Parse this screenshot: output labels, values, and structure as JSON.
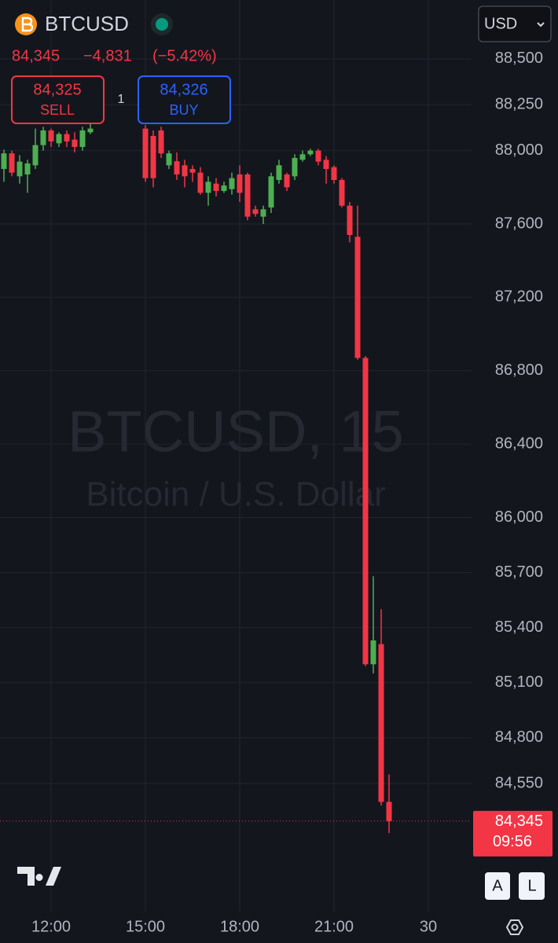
{
  "header": {
    "symbol": "BTCUSD",
    "last": "84,345",
    "change": "−4,831",
    "change_pct": "(−5.42%)",
    "sell_price": "84,325",
    "sell": "SELL",
    "spread": "1",
    "buy_price": "84,326",
    "buy": "BUY",
    "currency": "USD",
    "auto": "A",
    "log": "L"
  },
  "chart_data": {
    "type": "candlestick",
    "watermark": "BTCUSD, 15",
    "watermark_sub": "Bitcoin / U.S. Dollar",
    "last_label": "84,345",
    "countdown": "09:56",
    "up_color": "#4caf50",
    "down_color": "#f23645",
    "x": [
      10.5,
      10.75,
      11,
      11.25,
      11.5,
      11.75,
      12,
      12.25,
      12.5,
      12.75,
      13,
      13.25,
      15,
      15.25,
      15.5,
      15.75,
      16,
      16.25,
      16.5,
      16.75,
      17,
      17.25,
      17.5,
      17.75,
      18,
      18.25,
      18.5,
      18.75,
      19,
      19.25,
      19.5,
      19.75,
      20,
      20.25,
      20.5,
      20.75,
      21,
      21.25,
      21.5,
      21.75,
      22,
      22.25,
      22.5,
      22.75
    ],
    "open": [
      87900,
      87985,
      87860,
      87870,
      87920,
      88030,
      88110,
      88040,
      88090,
      88060,
      88020,
      88100,
      88120,
      88080,
      88110,
      87920,
      87942,
      87920,
      87900,
      87880,
      87770,
      87820,
      87780,
      87790,
      87870,
      87870,
      87680,
      87640,
      87690,
      87840,
      87870,
      87860,
      87950,
      87980,
      88000,
      87950,
      87910,
      87840,
      87700,
      87530,
      86870,
      85200,
      85310,
      84450
    ],
    "high": [
      88005,
      88000,
      87975,
      87950,
      88120,
      88130,
      88120,
      88100,
      88110,
      88100,
      88130,
      88150,
      88140,
      88110,
      88130,
      88000,
      87990,
      87950,
      87920,
      87910,
      87860,
      87850,
      87830,
      87880,
      87920,
      87880,
      87700,
      87700,
      87880,
      87950,
      87880,
      87980,
      88000,
      88010,
      88010,
      87970,
      87920,
      87850,
      87720,
      87700,
      86880,
      85680,
      85500,
      84600
    ],
    "low": [
      87830,
      87860,
      87820,
      87770,
      87900,
      88000,
      88020,
      88020,
      88020,
      87990,
      88000,
      88090,
      87830,
      87800,
      87960,
      87900,
      87840,
      87800,
      87830,
      87760,
      87700,
      87750,
      87770,
      87760,
      87720,
      87620,
      87640,
      87600,
      87660,
      87820,
      87780,
      87840,
      87940,
      87970,
      87920,
      87820,
      87820,
      87690,
      87500,
      86860,
      85190,
      85150,
      84430,
      84280
    ],
    "close": [
      87985,
      87880,
      87940,
      87930,
      88030,
      88110,
      88050,
      88090,
      88050,
      88020,
      88110,
      88120,
      87850,
      87850,
      87985,
      87985,
      87870,
      87860,
      87880,
      87770,
      87830,
      87780,
      87810,
      87850,
      87770,
      87640,
      87655,
      87680,
      87860,
      87920,
      87800,
      87960,
      87980,
      88000,
      87940,
      87900,
      87840,
      87700,
      87540,
      86870,
      85200,
      85330,
      84450,
      84345
    ],
    "xlim": [
      10.375,
      25.375
    ],
    "xticks": [
      {
        "value": 12,
        "label": "12:00"
      },
      {
        "value": 15,
        "label": "15:00"
      },
      {
        "value": 18,
        "label": "18:00"
      },
      {
        "value": 21,
        "label": "21:00"
      },
      {
        "value": 24,
        "label": "30"
      }
    ],
    "ylim": [
      83852,
      88821
    ],
    "yticks": [
      {
        "value": 88500,
        "label": "88,500"
      },
      {
        "value": 88250,
        "label": "88,250"
      },
      {
        "value": 88000,
        "label": "88,000"
      },
      {
        "value": 87600,
        "label": "87,600"
      },
      {
        "value": 87200,
        "label": "87,200"
      },
      {
        "value": 86800,
        "label": "86,800"
      },
      {
        "value": 86400,
        "label": "86,400"
      },
      {
        "value": 86000,
        "label": "86,000"
      },
      {
        "value": 85700,
        "label": "85,700"
      },
      {
        "value": 85400,
        "label": "85,400"
      },
      {
        "value": 85100,
        "label": "85,100"
      },
      {
        "value": 84800,
        "label": "84,800"
      },
      {
        "value": 84550,
        "label": "84,550"
      }
    ],
    "grid": true
  }
}
